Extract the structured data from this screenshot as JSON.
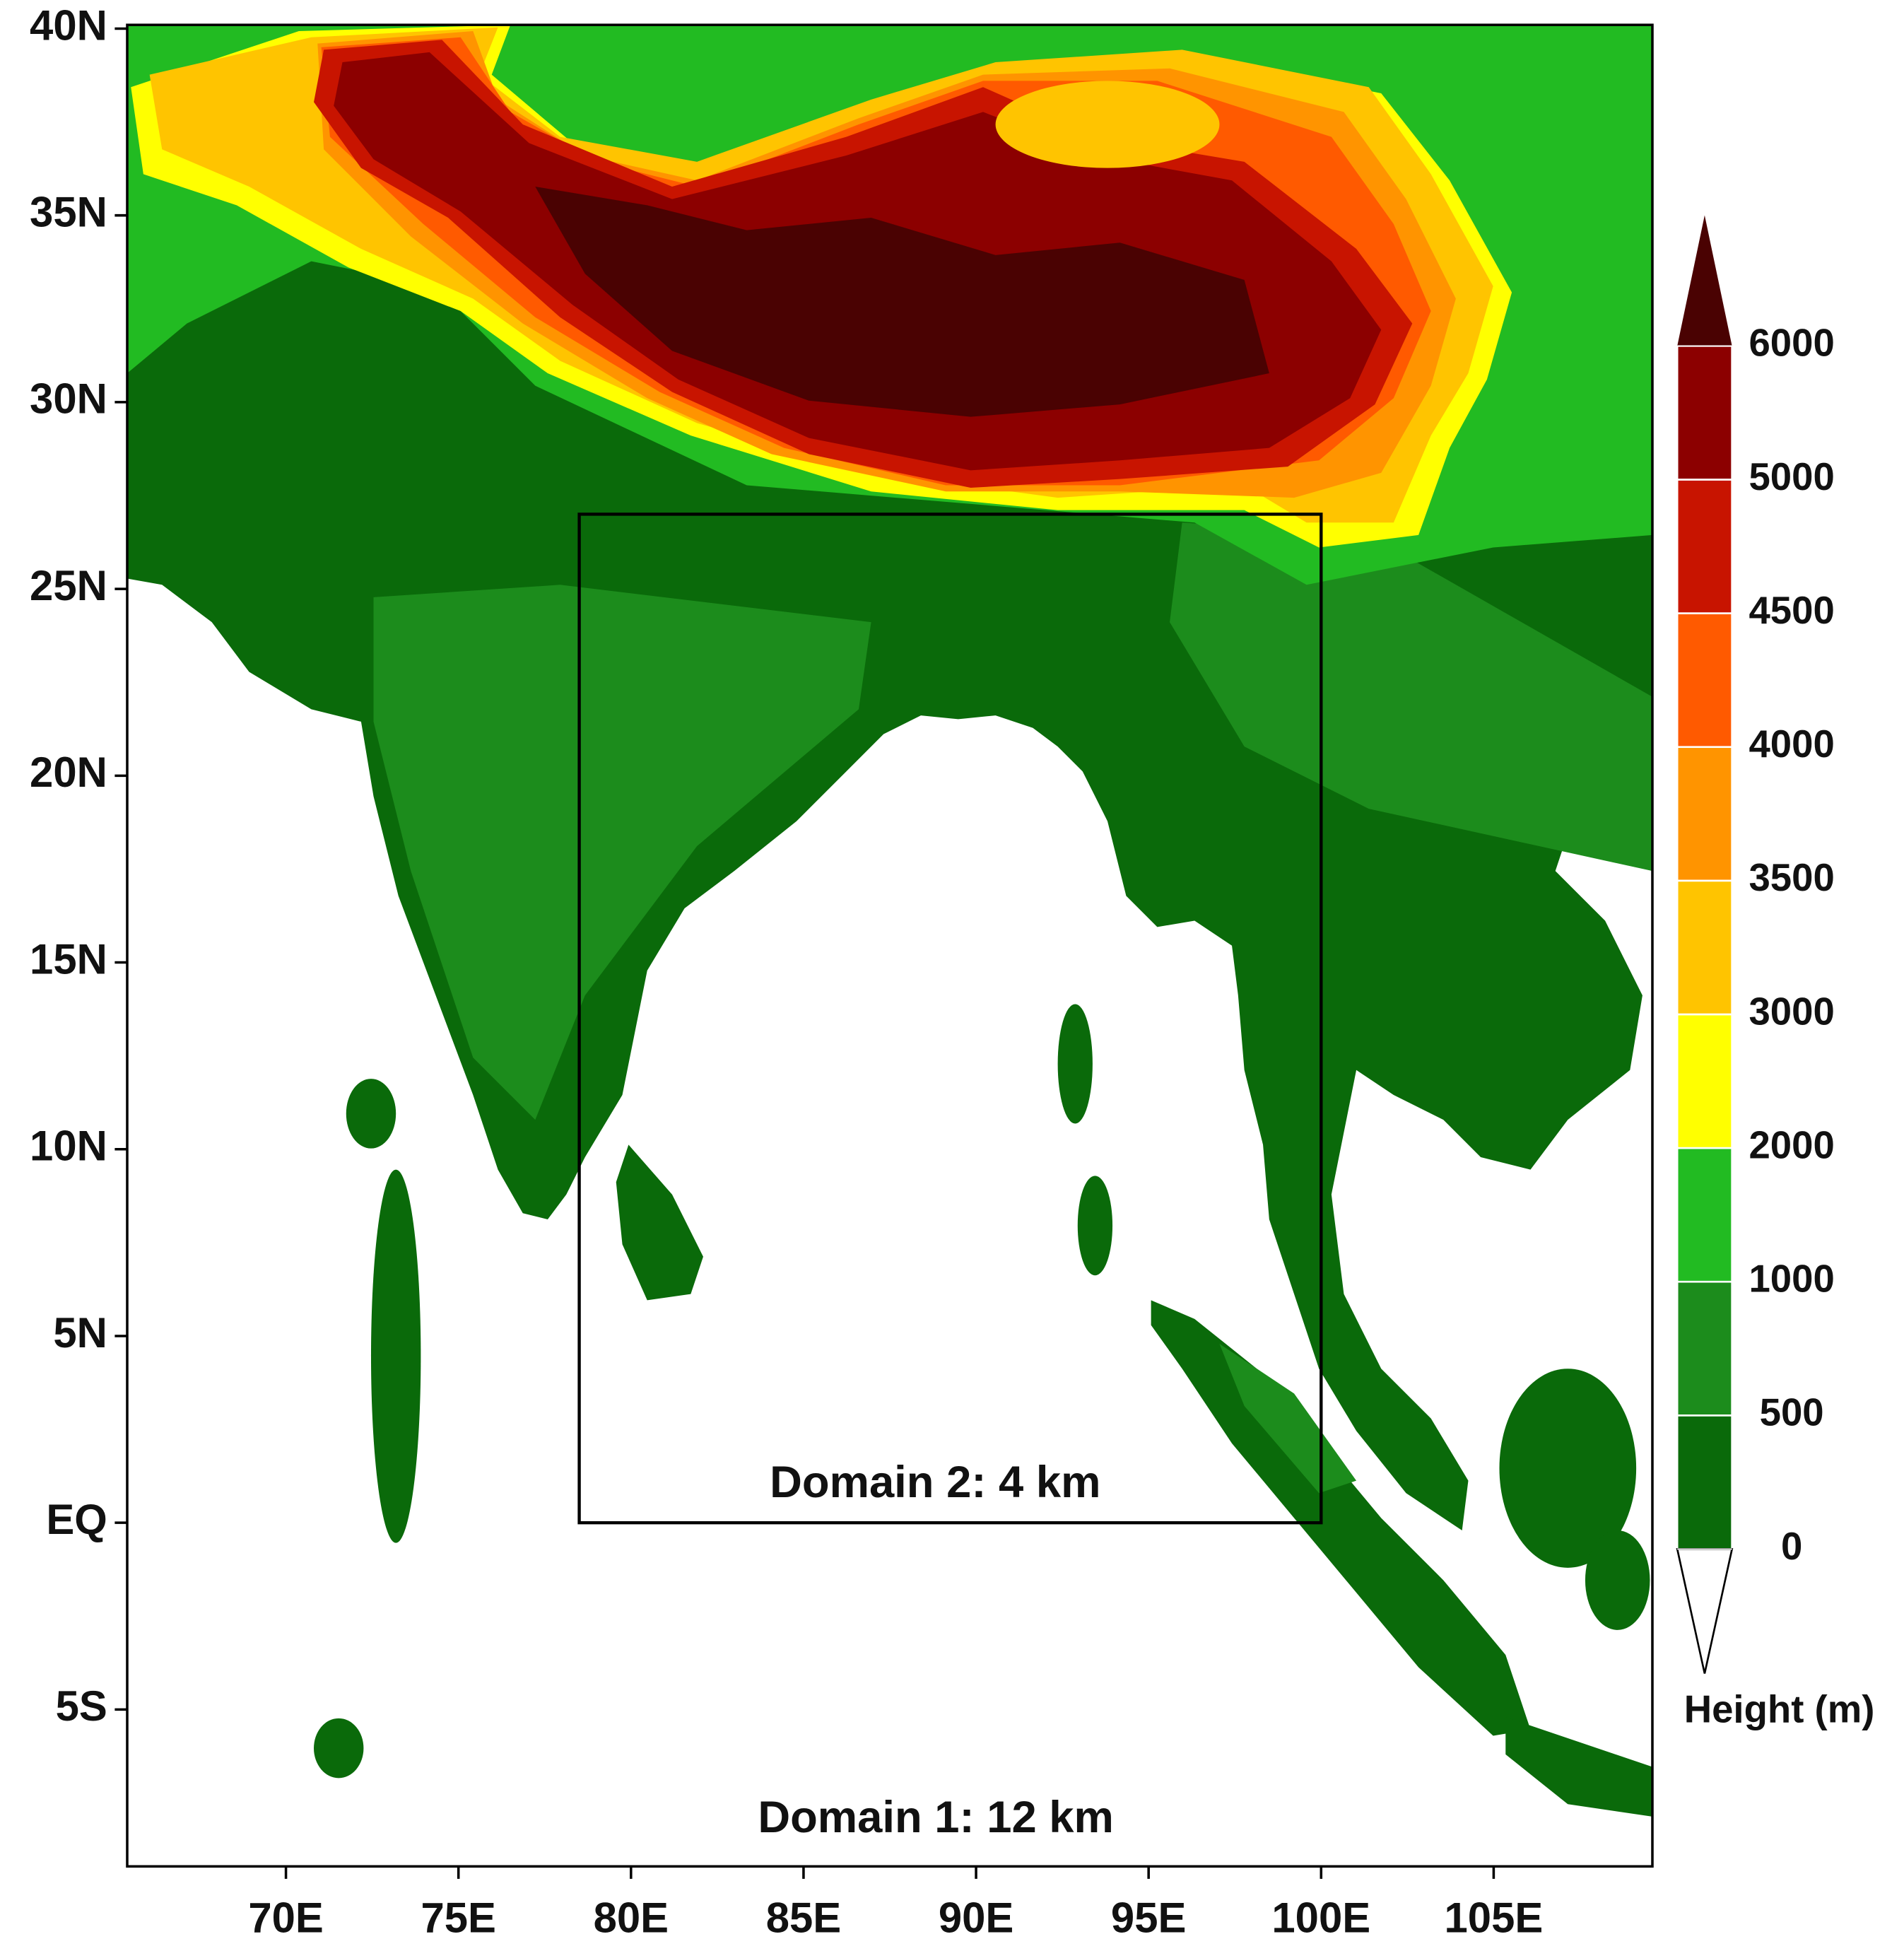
{
  "map": {
    "lonlim": [
      65.4,
      109.6
    ],
    "latlim": [
      -9.2,
      40.1
    ],
    "lonticks": [
      {
        "value": 70,
        "label": "70E"
      },
      {
        "value": 75,
        "label": "75E"
      },
      {
        "value": 80,
        "label": "80E"
      },
      {
        "value": 85,
        "label": "85E"
      },
      {
        "value": 90,
        "label": "90E"
      },
      {
        "value": 95,
        "label": "95E"
      },
      {
        "value": 100,
        "label": "100E"
      },
      {
        "value": 105,
        "label": "105E"
      }
    ],
    "latticks": [
      {
        "value": 40,
        "label": "40N"
      },
      {
        "value": 35,
        "label": "35N"
      },
      {
        "value": 30,
        "label": "30N"
      },
      {
        "value": 25,
        "label": "25N"
      },
      {
        "value": 20,
        "label": "20N"
      },
      {
        "value": 15,
        "label": "15N"
      },
      {
        "value": 10,
        "label": "10N"
      },
      {
        "value": 5,
        "label": "5N"
      },
      {
        "value": 0,
        "label": "EQ"
      },
      {
        "value": -5,
        "label": "5S"
      }
    ],
    "domain2": {
      "label": "Domain 2: 4 km",
      "lon": [
        78.5,
        100
      ],
      "lat": [
        0,
        27
      ]
    },
    "domain1_label": "Domain 1: 12 km"
  },
  "colorbar": {
    "title": "Height (m)",
    "levels": [
      0,
      500,
      1000,
      2000,
      3000,
      3500,
      4000,
      4500,
      5000,
      6000
    ],
    "colors": [
      "#0a6a0a",
      "#1c8c1c",
      "#22bb22",
      "#ffff00",
      "#ffc400",
      "#ff9400",
      "#ff5a00",
      "#c81400",
      "#8c0000"
    ],
    "over_color": "#4a0202",
    "under_color": "#ffffff"
  }
}
